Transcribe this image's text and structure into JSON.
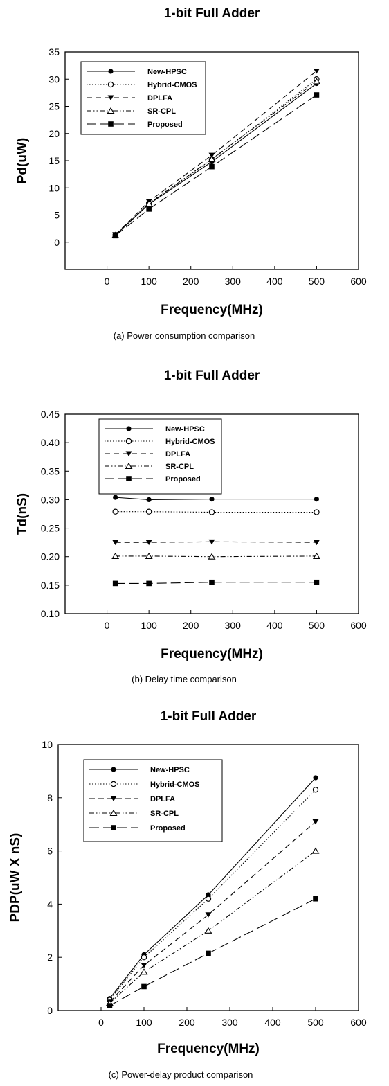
{
  "chart_data": [
    {
      "type": "line",
      "title": "1-bit Full Adder",
      "xlabel": "Frequency(MHz)",
      "ylabel": "Pd(uW)",
      "caption": "(a) Power consumption comparison",
      "xlim": [
        -100,
        600
      ],
      "ylim": [
        -5,
        35
      ],
      "xticks": [
        0,
        100,
        200,
        300,
        400,
        500,
        600
      ],
      "yticks": [
        0,
        5,
        10,
        15,
        20,
        25,
        30,
        35
      ],
      "legend_position": "top-left",
      "x": [
        20,
        100,
        250,
        500
      ],
      "series": [
        {
          "name": "New-HPSC",
          "values": [
            1.3,
            7.0,
            14.8,
            29.2
          ]
        },
        {
          "name": "Hybrid-CMOS",
          "values": [
            1.3,
            7.2,
            15.2,
            30.0
          ]
        },
        {
          "name": "DPLFA",
          "values": [
            1.4,
            7.5,
            16.0,
            31.5
          ]
        },
        {
          "name": "SR-CPL",
          "values": [
            1.3,
            7.1,
            15.3,
            29.6
          ]
        },
        {
          "name": "Proposed",
          "values": [
            1.2,
            6.1,
            13.9,
            27.1
          ]
        }
      ]
    },
    {
      "type": "line",
      "title": "1-bit Full Adder",
      "xlabel": "Frequency(MHz)",
      "ylabel": "Td(nS)",
      "caption": "(b) Delay time comparison",
      "xlim": [
        -100,
        600
      ],
      "ylim": [
        0.1,
        0.45
      ],
      "xticks": [
        0,
        100,
        200,
        300,
        400,
        500,
        600
      ],
      "yticks": [
        "0.10",
        "0.15",
        "0.20",
        "0.25",
        "0.30",
        "0.35",
        "0.40",
        "0.45"
      ],
      "legend_position": "top-left",
      "x": [
        20,
        100,
        250,
        500
      ],
      "series": [
        {
          "name": "New-HPSC",
          "values": [
            0.304,
            0.3,
            0.301,
            0.301
          ]
        },
        {
          "name": "Hybrid-CMOS",
          "values": [
            0.279,
            0.279,
            0.278,
            0.278
          ]
        },
        {
          "name": "DPLFA",
          "values": [
            0.225,
            0.225,
            0.226,
            0.225
          ]
        },
        {
          "name": "SR-CPL",
          "values": [
            0.201,
            0.201,
            0.2,
            0.201
          ]
        },
        {
          "name": "Proposed",
          "values": [
            0.153,
            0.153,
            0.155,
            0.155
          ]
        }
      ]
    },
    {
      "type": "line",
      "title": "1-bit Full Adder",
      "xlabel": "Frequency(MHz)",
      "ylabel": "PDP(uW X nS)",
      "caption": "(c) Power-delay product comparison",
      "xlim": [
        -100,
        600
      ],
      "ylim": [
        0,
        10
      ],
      "xticks": [
        0,
        100,
        200,
        300,
        400,
        500,
        600
      ],
      "yticks": [
        0,
        2,
        4,
        6,
        8,
        10
      ],
      "legend_position": "top-left",
      "x": [
        20,
        100,
        250,
        500
      ],
      "series": [
        {
          "name": "New-HPSC",
          "values": [
            0.45,
            2.1,
            4.35,
            8.75
          ]
        },
        {
          "name": "Hybrid-CMOS",
          "values": [
            0.4,
            2.0,
            4.2,
            8.3
          ]
        },
        {
          "name": "DPLFA",
          "values": [
            0.32,
            1.7,
            3.6,
            7.1
          ]
        },
        {
          "name": "SR-CPL",
          "values": [
            0.28,
            1.45,
            3.0,
            6.0
          ]
        },
        {
          "name": "Proposed",
          "values": [
            0.18,
            0.9,
            2.15,
            4.2
          ]
        }
      ]
    }
  ]
}
